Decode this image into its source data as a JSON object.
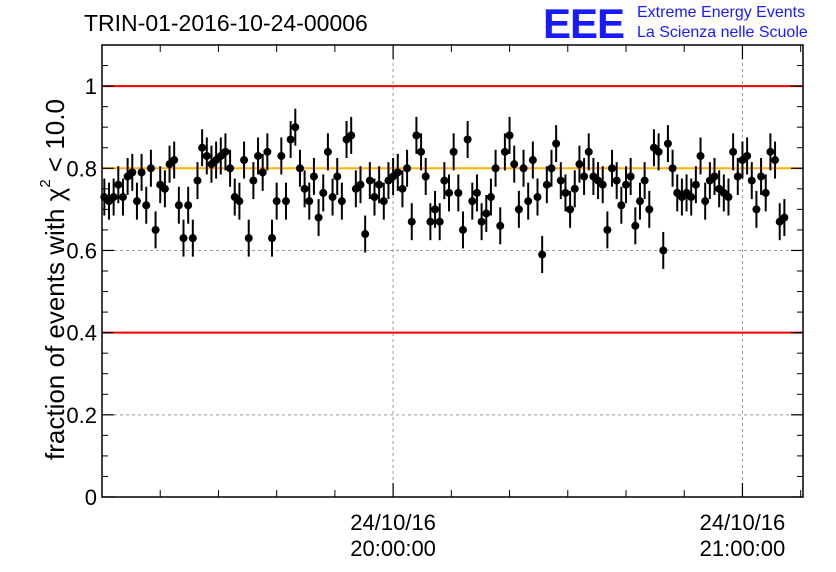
{
  "header": {
    "title": "TRIN-01-2016-10-24-00006",
    "logo_mark": "EEE",
    "logo_line1": "Extreme Energy Events",
    "logo_line2": "La Scienza nelle Scuole"
  },
  "colors": {
    "points": "#000000",
    "limit_lines": "#ee0000",
    "reference_line": "#ffb000",
    "grid": "#999999",
    "logo": "#1a1aff"
  },
  "chart_data": {
    "type": "scatter",
    "title": "TRIN-01-2016-10-24-00006",
    "ylabel_prefix": "fraction of events with ",
    "ylabel_symbol": "χ",
    "ylabel_exp": "2",
    "ylabel_suffix": " < 10.0",
    "xlabel": "",
    "x_unit": "minutes relative to 24/10/16 20:00:00",
    "xlim": [
      -50,
      70.4
    ],
    "ylim": [
      0,
      1.1
    ],
    "yticks": [
      0,
      0.2,
      0.4,
      0.6,
      0.8,
      1
    ],
    "ytick_labels": [
      "0",
      "0.2",
      "0.4",
      "0.6",
      "0.8",
      "1"
    ],
    "xticks_major": [
      0,
      60
    ],
    "xtick_labels": [
      [
        "24/10/16",
        "20:00:00"
      ],
      [
        "24/10/16",
        "21:00:00"
      ]
    ],
    "xticks_minor_step_min": 10,
    "grid": true,
    "hlines": [
      {
        "y": 1.0,
        "color": "red"
      },
      {
        "y": 0.4,
        "color": "red"
      },
      {
        "y": 0.8,
        "color": "orange"
      }
    ],
    "x_start_min": -49.6,
    "x_step_min": 0.8,
    "y_err": 0.045,
    "values": [
      0.73,
      0.72,
      0.73,
      0.76,
      0.73,
      0.78,
      0.79,
      0.72,
      0.79,
      0.71,
      0.8,
      0.65,
      0.76,
      0.75,
      0.81,
      0.82,
      0.71,
      0.63,
      0.71,
      0.63,
      0.77,
      0.85,
      0.83,
      0.81,
      0.82,
      0.83,
      0.84,
      0.8,
      0.73,
      0.72,
      0.82,
      0.63,
      0.77,
      0.83,
      0.79,
      0.84,
      0.63,
      0.72,
      0.83,
      0.72,
      0.87,
      0.9,
      0.8,
      0.75,
      0.72,
      0.78,
      0.68,
      0.74,
      0.84,
      0.73,
      0.78,
      0.72,
      0.87,
      0.88,
      0.75,
      0.76,
      0.64,
      0.77,
      0.73,
      0.76,
      0.72,
      0.77,
      0.78,
      0.79,
      0.75,
      0.8,
      0.67,
      0.88,
      0.84,
      0.78,
      0.67,
      0.7,
      0.67,
      0.77,
      0.74,
      0.84,
      0.74,
      0.65,
      0.87,
      0.72,
      0.74,
      0.67,
      0.69,
      0.73,
      0.8,
      0.66,
      0.84,
      0.88,
      0.81,
      0.7,
      0.8,
      0.72,
      0.82,
      0.73,
      0.59,
      0.76,
      0.8,
      0.86,
      0.77,
      0.74,
      0.7,
      0.75,
      0.81,
      0.78,
      0.84,
      0.78,
      0.77,
      0.76,
      0.65,
      0.8,
      0.77,
      0.71,
      0.76,
      0.78,
      0.66,
      0.72,
      0.77,
      0.7,
      0.85,
      0.84,
      0.6,
      0.86,
      0.8,
      0.74,
      0.73,
      0.74,
      0.73,
      0.76,
      0.83,
      0.72,
      0.77,
      0.78,
      0.75,
      0.74,
      0.73,
      0.84,
      0.78,
      0.82,
      0.83,
      0.77,
      0.7,
      0.78,
      0.74,
      0.84,
      0.82,
      0.67,
      0.68
    ]
  }
}
